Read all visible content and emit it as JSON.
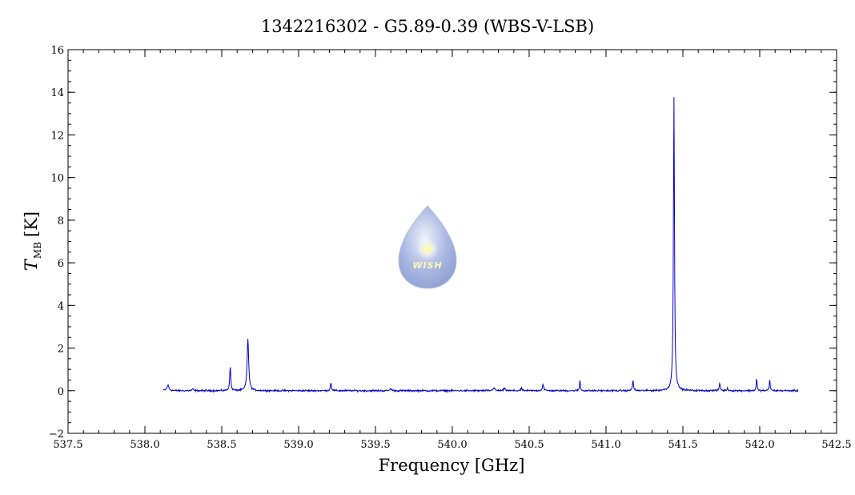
{
  "chart_data": {
    "type": "line",
    "title": "1342216302 - G5.89-0.39 (WBS-V-LSB)",
    "xlabel": "Frequency [GHz]",
    "ylabel_main": "T",
    "ylabel_sub": "MB",
    "ylabel_unit": "[K]",
    "xlim": [
      537.5,
      542.5
    ],
    "ylim": [
      -2,
      16
    ],
    "xticks": [
      "537.5",
      "538.0",
      "538.5",
      "539.0",
      "539.5",
      "540.0",
      "540.5",
      "541.0",
      "541.5",
      "542.0",
      "542.5"
    ],
    "yticks": [
      "-2",
      "0",
      "2",
      "4",
      "6",
      "8",
      "10",
      "12",
      "14",
      "16"
    ],
    "x_minor_step": 0.1,
    "y_minor_step": 0.5,
    "grid": false,
    "series": [
      {
        "color": "#0000cc",
        "x_range": [
          538.12,
          542.25
        ],
        "baseline": 0.0,
        "noise": 0.04,
        "peaks": [
          {
            "x": 538.15,
            "y": 0.25,
            "w": 0.008
          },
          {
            "x": 538.31,
            "y": 0.08,
            "w": 0.005
          },
          {
            "x": 538.555,
            "y": 1.15,
            "w": 0.004
          },
          {
            "x": 538.67,
            "y": 2.45,
            "w": 0.006
          },
          {
            "x": 539.21,
            "y": 0.38,
            "w": 0.004
          },
          {
            "x": 539.6,
            "y": 0.1,
            "w": 0.005
          },
          {
            "x": 540.27,
            "y": 0.15,
            "w": 0.006
          },
          {
            "x": 540.34,
            "y": 0.12,
            "w": 0.005
          },
          {
            "x": 540.45,
            "y": 0.12,
            "w": 0.004
          },
          {
            "x": 540.59,
            "y": 0.3,
            "w": 0.005
          },
          {
            "x": 540.83,
            "y": 0.5,
            "w": 0.003
          },
          {
            "x": 541.175,
            "y": 0.48,
            "w": 0.004
          },
          {
            "x": 541.442,
            "y": 13.8,
            "w": 0.004
          },
          {
            "x": 541.74,
            "y": 0.35,
            "w": 0.004
          },
          {
            "x": 541.79,
            "y": 0.1,
            "w": 0.005
          },
          {
            "x": 541.98,
            "y": 0.6,
            "w": 0.003
          },
          {
            "x": 542.065,
            "y": 0.55,
            "w": 0.003
          }
        ]
      }
    ]
  },
  "logo": {
    "text": "WISH",
    "icon": "water-drop-star-icon"
  }
}
